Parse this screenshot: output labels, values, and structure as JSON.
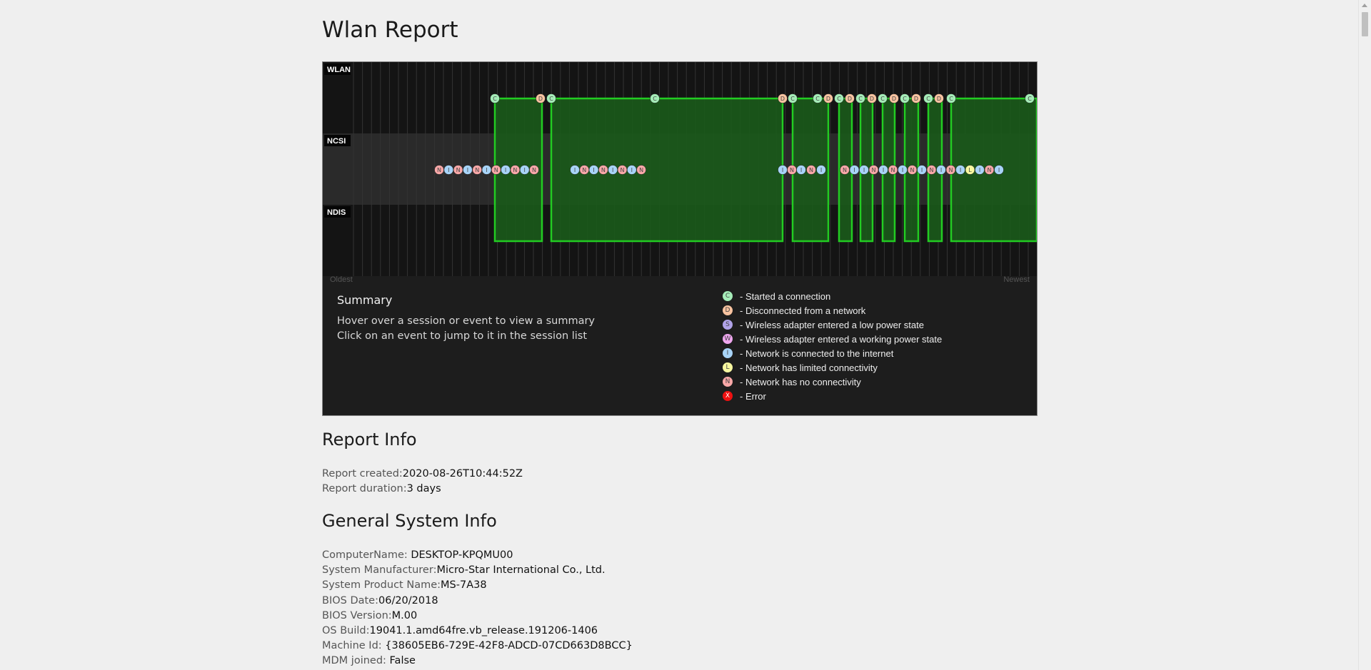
{
  "title": "Wlan Report",
  "timeline": {
    "rows": [
      "WLAN",
      "NCSI",
      "NDIS"
    ],
    "oldest_label": "Oldest",
    "newest_label": "Newest",
    "wlan_events": [
      "C",
      "D",
      "C",
      "C",
      "D",
      "C",
      "C",
      "D",
      "C",
      "D",
      "C",
      "D",
      "C",
      "D",
      "C",
      "D",
      "C",
      "D",
      "C",
      "C"
    ],
    "ncsi_events": [
      "N",
      "I",
      "N",
      "I",
      "N",
      "I",
      "N",
      "I",
      "N",
      "I",
      "N",
      "I",
      "N",
      "I",
      "N",
      "I",
      "N",
      "I",
      "N",
      "I",
      "N",
      "I",
      "N",
      "I",
      "N",
      "I",
      "I",
      "N",
      "I",
      "N",
      "I",
      "N",
      "I",
      "N",
      "I",
      "N",
      "I",
      "L",
      "I",
      "N",
      "I"
    ],
    "colors": {
      "session_fill": "#1a5a1a",
      "session_line": "#22cc22",
      "C": "#a5ecb8",
      "D": "#f8c3a0",
      "S": "#b0a2e8",
      "W": "#eea6ee",
      "I": "#a8d4f8",
      "L": "#f8f8a0",
      "N": "#f8a8a8",
      "X": "#ee1111"
    }
  },
  "summary": {
    "title": "Summary",
    "line1": "Hover over a session or event to view a summary",
    "line2": "Click on an event to jump to it in the session list"
  },
  "legend": [
    {
      "code": "C",
      "label": "- Started a connection",
      "color": "#a5ecb8"
    },
    {
      "code": "D",
      "label": "- Disconnected from a network",
      "color": "#f8c3a0"
    },
    {
      "code": "S",
      "label": "- Wireless adapter entered a low power state",
      "color": "#b0a2e8"
    },
    {
      "code": "W",
      "label": "- Wireless adapter entered a working power state",
      "color": "#eea6ee"
    },
    {
      "code": "I",
      "label": "- Network is connected to the internet",
      "color": "#a8d4f8"
    },
    {
      "code": "L",
      "label": "- Network has limited connectivity",
      "color": "#f8f8a0"
    },
    {
      "code": "N",
      "label": "- Network has no connectivity",
      "color": "#f8a8a8"
    },
    {
      "code": "X",
      "label": "- Error",
      "color": "#ee1111"
    }
  ],
  "report_info": {
    "title": "Report Info",
    "rows": [
      {
        "key": "Report created:",
        "value": "2020-08-26T10:44:52Z"
      },
      {
        "key": "Report duration:",
        "value": "3 days"
      }
    ]
  },
  "system_info": {
    "title": "General System Info",
    "rows": [
      {
        "key": "ComputerName: ",
        "value": "DESKTOP-KPQMU00"
      },
      {
        "key": "System Manufacturer:",
        "value": "Micro-Star International Co., Ltd."
      },
      {
        "key": "System Product Name:",
        "value": "MS-7A38"
      },
      {
        "key": "BIOS Date:",
        "value": "06/20/2018"
      },
      {
        "key": "BIOS Version:",
        "value": "M.00"
      },
      {
        "key": "OS Build:",
        "value": "19041.1.amd64fre.vb_release.191206-1406"
      },
      {
        "key": "Machine Id: ",
        "value": "{38605EB6-729E-42F8-ADCD-07CD663D8BCC}"
      },
      {
        "key": "MDM joined: ",
        "value": "False"
      }
    ]
  }
}
